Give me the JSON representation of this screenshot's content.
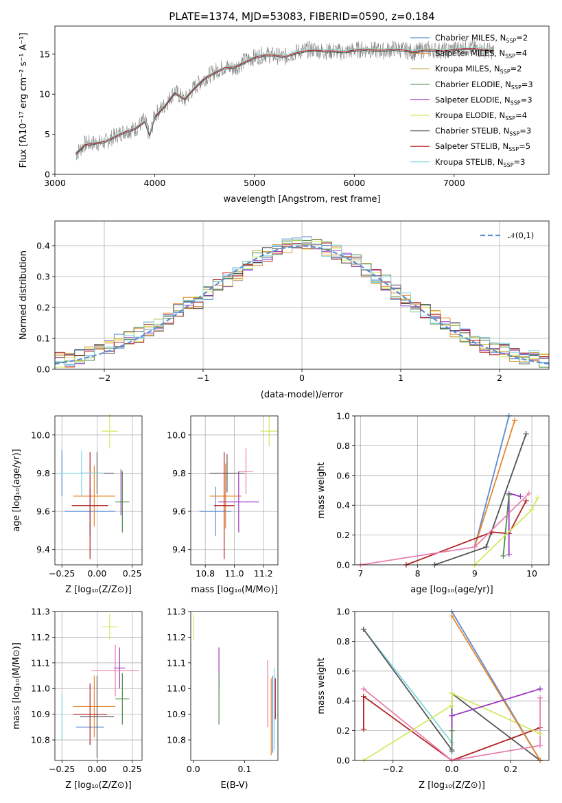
{
  "figure": {
    "title": "PLATE=1374, MJD=53083, FIBERID=0590, z=0.184"
  },
  "legend_spectrum": [
    {
      "label": "Chabrier MILES, N",
      "sub": "SSP",
      "eq": "=2",
      "color": "#5b8bd0"
    },
    {
      "label": "Salpeter MILES, N",
      "sub": "SSP",
      "eq": "=4",
      "color": "#e8862a"
    },
    {
      "label": "Kroupa MILES, N",
      "sub": "SSP",
      "eq": "=2",
      "color": "#c8a030"
    },
    {
      "label": "Chabrier ELODIE, N",
      "sub": "SSP",
      "eq": "=3",
      "color": "#4c8c4a"
    },
    {
      "label": "Salpeter ELODIE, N",
      "sub": "SSP",
      "eq": "=3",
      "color": "#9a36c0"
    },
    {
      "label": "Kroupa ELODIE, N",
      "sub": "SSP",
      "eq": "=4",
      "color": "#d4e860"
    },
    {
      "label": "Chabrier STELIB, N",
      "sub": "SSP",
      "eq": "=3",
      "color": "#555555"
    },
    {
      "label": "Salpeter STELIB, N",
      "sub": "SSP",
      "eq": "=5",
      "color": "#b22222"
    },
    {
      "label": "Kroupa STELIB, N",
      "sub": "SSP",
      "eq": "=3",
      "color": "#7fd6e0"
    }
  ],
  "legend_residual": {
    "label": "𝒩(0,1)",
    "color": "#5b8bd0"
  },
  "chart_data": [
    {
      "id": "spectrum",
      "type": "line",
      "xlabel": "wavelength [Angstrom, rest frame]",
      "ylabel": "Flux [fλ10⁻¹⁷ erg cm⁻² s⁻¹ A⁻¹]",
      "xlim": [
        3000,
        7950
      ],
      "ylim": [
        0,
        18.5
      ],
      "xticks": [
        3000,
        4000,
        5000,
        6000,
        7000
      ],
      "yticks": [
        0,
        5,
        10,
        15
      ],
      "data_x": [
        3210,
        3300,
        3400,
        3500,
        3600,
        3700,
        3800,
        3900,
        3950,
        4000,
        4100,
        4200,
        4300,
        4400,
        4500,
        4600,
        4700,
        4800,
        4900,
        5000,
        5100,
        5200,
        5300,
        5400,
        5500,
        5600,
        5700,
        5800,
        5900,
        6000,
        6100,
        6200,
        6300,
        6400,
        6500,
        6600,
        6700,
        6800,
        6900,
        7000,
        7100,
        7200,
        7300,
        7400
      ],
      "data_y": [
        2.5,
        3.8,
        3.9,
        4.0,
        4.8,
        5.4,
        5.6,
        6.8,
        4.6,
        7.4,
        8.6,
        10.4,
        9.2,
        10.9,
        12.0,
        12.8,
        13.4,
        13.2,
        14.2,
        14.6,
        15.0,
        14.8,
        14.6,
        15.2,
        15.5,
        15.6,
        15.3,
        15.4,
        15.2,
        15.5,
        15.6,
        15.5,
        15.4,
        15.7,
        15.5,
        15.2,
        15.6,
        15.5,
        15.4,
        15.6,
        15.8,
        15.7,
        15.5,
        15.3
      ],
      "model_x": [
        3210,
        3300,
        3400,
        3500,
        3600,
        3700,
        3800,
        3900,
        3950,
        4000,
        4100,
        4200,
        4300,
        4400,
        4500,
        4600,
        4700,
        4800,
        4900,
        5000,
        5100,
        5200,
        5300,
        5400,
        5500,
        5600,
        5700,
        5800,
        5900,
        6000,
        6100,
        6200,
        6300,
        6400,
        6500,
        6600,
        6700,
        6800,
        6900,
        7000,
        7100,
        7200,
        7300,
        7400
      ],
      "model_y": [
        2.6,
        3.7,
        3.9,
        4.1,
        4.7,
        5.3,
        5.7,
        6.6,
        4.9,
        7.2,
        8.5,
        10.2,
        9.4,
        10.8,
        12.0,
        12.7,
        13.3,
        13.4,
        14.0,
        14.6,
        14.9,
        14.9,
        14.7,
        15.1,
        15.4,
        15.5,
        15.4,
        15.4,
        15.3,
        15.5,
        15.6,
        15.5,
        15.5,
        15.6,
        15.5,
        15.3,
        15.5,
        15.5,
        15.4,
        15.6,
        15.7,
        15.7,
        15.6,
        15.4
      ]
    },
    {
      "id": "residuals",
      "type": "area",
      "xlabel": "(data-model)/error",
      "ylabel": "Normed distribution",
      "xlim": [
        -2.5,
        2.5
      ],
      "ylim": [
        0,
        0.48
      ],
      "xticks": [
        -2,
        -1,
        0,
        1,
        2
      ],
      "yticks": [
        0.0,
        0.1,
        0.2,
        0.3,
        0.4
      ],
      "grid": true,
      "bins": [
        -2.5,
        -2.4,
        -2.3,
        -2.2,
        -2.1,
        -2.0,
        -1.9,
        -1.8,
        -1.7,
        -1.6,
        -1.5,
        -1.4,
        -1.3,
        -1.2,
        -1.1,
        -1.0,
        -0.9,
        -0.8,
        -0.7,
        -0.6,
        -0.5,
        -0.4,
        -0.3,
        -0.2,
        -0.1,
        0.0,
        0.1,
        0.2,
        0.3,
        0.4,
        0.5,
        0.6,
        0.7,
        0.8,
        0.9,
        1.0,
        1.1,
        1.2,
        1.3,
        1.4,
        1.5,
        1.6,
        1.7,
        1.8,
        1.9,
        2.0,
        2.1,
        2.2,
        2.3,
        2.4
      ],
      "hist": [
        0.03,
        0.03,
        0.04,
        0.05,
        0.06,
        0.07,
        0.09,
        0.1,
        0.11,
        0.13,
        0.14,
        0.16,
        0.19,
        0.21,
        0.22,
        0.25,
        0.27,
        0.29,
        0.31,
        0.34,
        0.36,
        0.37,
        0.38,
        0.4,
        0.41,
        0.41,
        0.4,
        0.39,
        0.38,
        0.36,
        0.35,
        0.32,
        0.3,
        0.28,
        0.25,
        0.23,
        0.21,
        0.19,
        0.17,
        0.15,
        0.13,
        0.11,
        0.1,
        0.08,
        0.07,
        0.06,
        0.05,
        0.04,
        0.04,
        0.03
      ]
    },
    {
      "id": "age-vs-Z",
      "type": "scatter",
      "xlabel": "Z [log₁₀(Z/Z⊙)]",
      "ylabel": "age  [log₁₀(age/yr)]",
      "xlim": [
        -0.3,
        0.32
      ],
      "ylim": [
        9.32,
        10.1
      ],
      "xticks": [
        -0.25,
        0.0,
        0.25
      ],
      "yticks": [
        9.4,
        9.6,
        9.8,
        10.0
      ],
      "grid": true,
      "points": [
        {
          "x": -0.25,
          "y": 9.8,
          "xerr": 0.0,
          "yerr": 0.12,
          "color": "#5b8bd0"
        },
        {
          "x": -0.05,
          "y": 9.6,
          "xerr": 0.18,
          "yerr": 0.13,
          "color": "#5b8bd0"
        },
        {
          "x": -0.02,
          "y": 9.68,
          "xerr": 0.15,
          "yerr": 0.16,
          "color": "#e8862a"
        },
        {
          "x": 0.18,
          "y": 9.65,
          "xerr": 0.05,
          "yerr": 0.16,
          "color": "#4c8c4a"
        },
        {
          "x": 0.17,
          "y": 9.7,
          "xerr": 0.0,
          "yerr": 0.12,
          "color": "#9a36c0"
        },
        {
          "x": 0.09,
          "y": 10.02,
          "xerr": 0.06,
          "yerr": 0.09,
          "color": "#d4e860"
        },
        {
          "x": 0.0,
          "y": 9.8,
          "xerr": 0.12,
          "yerr": 0.11,
          "color": "#555555"
        },
        {
          "x": -0.05,
          "y": 9.63,
          "xerr": 0.13,
          "yerr": 0.28,
          "color": "#b22222"
        },
        {
          "x": -0.11,
          "y": 9.8,
          "xerr": 0.16,
          "yerr": 0.12,
          "color": "#7fd6e0"
        }
      ]
    },
    {
      "id": "age-vs-mass",
      "type": "scatter",
      "xlabel": "mass [log₁₀(M/M⊙)]",
      "xlim": [
        10.7,
        11.3
      ],
      "ylim": [
        9.32,
        10.1
      ],
      "xticks": [
        10.8,
        11.0,
        11.2
      ],
      "yticks": [
        9.4,
        9.6,
        9.8,
        10.0
      ],
      "grid": true,
      "points": [
        {
          "x": 10.87,
          "y": 9.6,
          "xerr": 0.11,
          "yerr": 0.13,
          "color": "#5b8bd0"
        },
        {
          "x": 10.94,
          "y": 9.68,
          "xerr": 0.11,
          "yerr": 0.17,
          "color": "#e8862a"
        },
        {
          "x": 11.03,
          "y": 9.65,
          "xerr": 0.14,
          "yerr": 0.16,
          "color": "#9a36c0"
        },
        {
          "x": 11.24,
          "y": 10.02,
          "xerr": 0.06,
          "yerr": 0.08,
          "color": "#d4e860"
        },
        {
          "x": 10.95,
          "y": 9.8,
          "xerr": 0.12,
          "yerr": 0.1,
          "color": "#555555"
        },
        {
          "x": 10.93,
          "y": 9.63,
          "xerr": 0.07,
          "yerr": 0.28,
          "color": "#b22222"
        },
        {
          "x": 11.08,
          "y": 9.81,
          "xerr": 0.05,
          "yerr": 0.12,
          "color": "#e87fb0"
        }
      ]
    },
    {
      "id": "weight-vs-age",
      "type": "line",
      "xlabel": "age  [log₁₀(age/yr)]",
      "ylabel": "mass weight",
      "xlim": [
        6.9,
        10.3
      ],
      "ylim": [
        0,
        1.0
      ],
      "xticks": [
        7,
        8,
        9,
        10
      ],
      "yticks": [
        0.0,
        0.2,
        0.4,
        0.6,
        0.8,
        1.0
      ],
      "grid": true,
      "series": [
        {
          "color": "#5b8bd0",
          "x": [
            9.0,
            9.6
          ],
          "y": [
            0.12,
            1.0
          ]
        },
        {
          "color": "#e8862a",
          "x": [
            9.0,
            9.7
          ],
          "y": [
            0.12,
            0.97
          ]
        },
        {
          "color": "#7fd6e0",
          "x": [
            9.2,
            9.9
          ],
          "y": [
            0.12,
            0.88
          ]
        },
        {
          "color": "#555555",
          "x": [
            8.3,
            9.2,
            9.9
          ],
          "y": [
            0.0,
            0.12,
            0.88
          ]
        },
        {
          "color": "#b22222",
          "x": [
            7.8,
            9.3,
            9.6,
            9.9
          ],
          "y": [
            0.0,
            0.22,
            0.21,
            0.43
          ]
        },
        {
          "color": "#9a36c0",
          "x": [
            9.6,
            9.6,
            9.8
          ],
          "y": [
            0.07,
            0.48,
            0.46
          ]
        },
        {
          "color": "#4c8c4a",
          "x": [
            9.5,
            9.6
          ],
          "y": [
            0.06,
            0.47
          ]
        },
        {
          "color": "#d4e860",
          "x": [
            9.0,
            10.0,
            10.1
          ],
          "y": [
            0.0,
            0.37,
            0.45
          ]
        },
        {
          "color": "#e87fb0",
          "x": [
            7.0,
            9.0,
            9.95
          ],
          "y": [
            0.0,
            0.12,
            0.48
          ]
        }
      ]
    },
    {
      "id": "mass-vs-Z",
      "type": "scatter",
      "xlabel": "Z [log₁₀(Z/Z⊙)]",
      "ylabel": "mass [log₁₀(M/M⊙)]",
      "xlim": [
        -0.3,
        0.32
      ],
      "ylim": [
        10.72,
        11.3
      ],
      "xticks": [
        -0.25,
        0.0,
        0.25
      ],
      "yticks": [
        10.8,
        10.9,
        11.0,
        11.1,
        11.2,
        11.3
      ],
      "grid": true,
      "points": [
        {
          "x": -0.25,
          "y": 10.89,
          "xerr": 0.0,
          "yerr": 0.09,
          "color": "#7fd6e0"
        },
        {
          "x": -0.05,
          "y": 10.85,
          "xerr": 0.1,
          "yerr": 0.0,
          "color": "#5b8bd0"
        },
        {
          "x": -0.02,
          "y": 10.93,
          "xerr": 0.15,
          "yerr": 0.12,
          "color": "#e8862a"
        },
        {
          "x": 0.18,
          "y": 10.96,
          "xerr": 0.05,
          "yerr": 0.1,
          "color": "#4c8c4a"
        },
        {
          "x": 0.16,
          "y": 11.08,
          "xerr": 0.04,
          "yerr": 0.08,
          "color": "#9a36c0"
        },
        {
          "x": 0.09,
          "y": 11.24,
          "xerr": 0.06,
          "yerr": 0.05,
          "color": "#d4e860"
        },
        {
          "x": 0.0,
          "y": 10.89,
          "xerr": 0.12,
          "yerr": 0.16,
          "color": "#555555"
        },
        {
          "x": -0.05,
          "y": 10.9,
          "xerr": 0.12,
          "yerr": 0.12,
          "color": "#b22222"
        },
        {
          "x": 0.13,
          "y": 11.07,
          "xerr": 0.17,
          "yerr": 0.1,
          "color": "#e87fb0"
        }
      ]
    },
    {
      "id": "mass-vs-EBV",
      "type": "scatter",
      "xlabel": "E(B-V)",
      "xlim": [
        -0.005,
        0.165
      ],
      "ylim": [
        10.72,
        11.3
      ],
      "xticks": [
        0.0,
        0.1
      ],
      "yticks": [
        10.8,
        10.9,
        11.0,
        11.1,
        11.2,
        11.3
      ],
      "points": [
        {
          "x": 0.0,
          "y": 11.24,
          "xerr": 0.0,
          "yerr": 0.05,
          "color": "#d4e860"
        },
        {
          "x": 0.05,
          "y": 11.08,
          "xerr": 0.0,
          "yerr": 0.08,
          "color": "#9a36c0"
        },
        {
          "x": 0.05,
          "y": 10.96,
          "xerr": 0.0,
          "yerr": 0.1,
          "color": "#4c8c4a"
        },
        {
          "x": 0.145,
          "y": 10.98,
          "xerr": 0.0,
          "yerr": 0.13,
          "color": "#e87fb0"
        },
        {
          "x": 0.152,
          "y": 10.89,
          "xerr": 0.0,
          "yerr": 0.15,
          "color": "#e8862a"
        },
        {
          "x": 0.155,
          "y": 10.9,
          "xerr": 0.0,
          "yerr": 0.15,
          "color": "#5b8bd0"
        },
        {
          "x": 0.158,
          "y": 10.92,
          "xerr": 0.0,
          "yerr": 0.16,
          "color": "#7fd6e0"
        },
        {
          "x": 0.16,
          "y": 10.96,
          "xerr": 0.0,
          "yerr": 0.08,
          "color": "#b22222"
        }
      ]
    },
    {
      "id": "weight-vs-Z",
      "type": "line",
      "xlabel": "Z [log₁₀(Z/Z⊙)]",
      "ylabel": "mass weight",
      "xlim": [
        -0.33,
        0.33
      ],
      "ylim": [
        0,
        1.0
      ],
      "xticks": [
        -0.2,
        0.0,
        0.2
      ],
      "yticks": [
        0.0,
        0.2,
        0.4,
        0.6,
        0.8,
        1.0
      ],
      "grid": true,
      "series": [
        {
          "color": "#7fd6e0",
          "x": [
            -0.3,
            0.0
          ],
          "y": [
            0.88,
            0.12
          ]
        },
        {
          "color": "#555555",
          "x": [
            -0.3,
            0.0,
            0.0,
            0.3
          ],
          "y": [
            0.88,
            0.07,
            0.45,
            0.0
          ]
        },
        {
          "color": "#b22222",
          "x": [
            -0.3,
            -0.3,
            0.0,
            0.3
          ],
          "y": [
            0.21,
            0.43,
            0.0,
            0.22
          ]
        },
        {
          "color": "#e87fb0",
          "x": [
            -0.3,
            0.0,
            0.3,
            0.3
          ],
          "y": [
            0.48,
            0.0,
            0.1,
            0.42
          ]
        },
        {
          "color": "#d4e860",
          "x": [
            -0.3,
            0.0,
            0.0,
            0.3
          ],
          "y": [
            0.0,
            0.37,
            0.45,
            0.18
          ]
        },
        {
          "color": "#5b8bd0",
          "x": [
            0.0,
            0.3
          ],
          "y": [
            1.0,
            0.0
          ]
        },
        {
          "color": "#e8862a",
          "x": [
            0.0,
            0.3
          ],
          "y": [
            0.97,
            0.0
          ]
        },
        {
          "color": "#9a36c0",
          "x": [
            0.0,
            0.0,
            0.3
          ],
          "y": [
            0.07,
            0.3,
            0.48
          ]
        },
        {
          "color": "#4c8c4a",
          "x": [
            0.0,
            0.0
          ],
          "y": [
            0.06,
            0.2
          ]
        }
      ]
    }
  ]
}
